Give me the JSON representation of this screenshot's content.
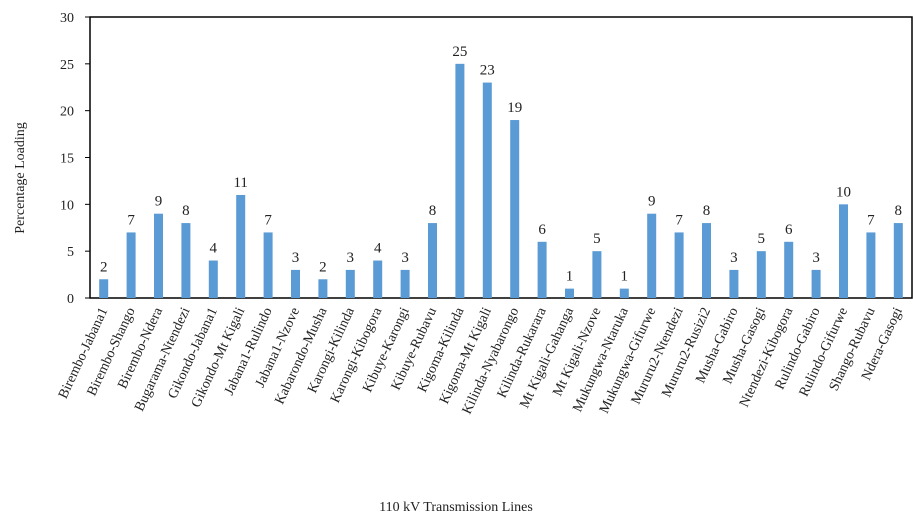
{
  "chart_data": {
    "type": "bar",
    "y_label": "Percentage Loading",
    "x_label": "110 kV Transmission Lines",
    "categories": [
      "Birembo-Jabana1",
      "Birembo-Shango",
      "Birembo-Ndera",
      "Bugarama-Ntendezi",
      "Gikondo-Jabana1",
      "Gikondo-Mt Kigali",
      "Jabana1-Rulindo",
      "Jabana1-Nzove",
      "Kabarondo-Musha",
      "Karongi-Kilinda",
      "Karongi-Kibogora",
      "Kibuye-Karongi",
      "Kibuye-Rubavu",
      "Kigoma-Kilinda",
      "Kigoma-Mt Kigali",
      "Kilinda-Nyabarongo",
      "Kilinda-Rukarara",
      "Mt Kigali-Gahanga",
      "Mt Kigali-Nzove",
      "Mukungwa-Ntaruka",
      "Mukungwa-Gifurwe",
      "Mururu2-Ntendezi",
      "Mururu2-Rusizi2",
      "Musha-Gabiro",
      "Musha-Gasogi",
      "Ntendezi-Kibogora",
      "Rulindo-Gabiro",
      "Rulindo-Gifurwe",
      "Shango-Rubavu",
      "Ndera-Gasogi"
    ],
    "values": [
      2,
      7,
      9,
      8,
      4,
      11,
      7,
      3,
      2,
      3,
      4,
      3,
      8,
      25,
      23,
      19,
      6,
      1,
      5,
      1,
      9,
      7,
      8,
      3,
      5,
      6,
      3,
      10,
      7,
      8
    ],
    "color": "#5b9bd5",
    "ylim": [
      0,
      30
    ],
    "yticks": [
      0,
      5,
      10,
      15,
      20,
      25,
      30
    ],
    "grid": false
  }
}
